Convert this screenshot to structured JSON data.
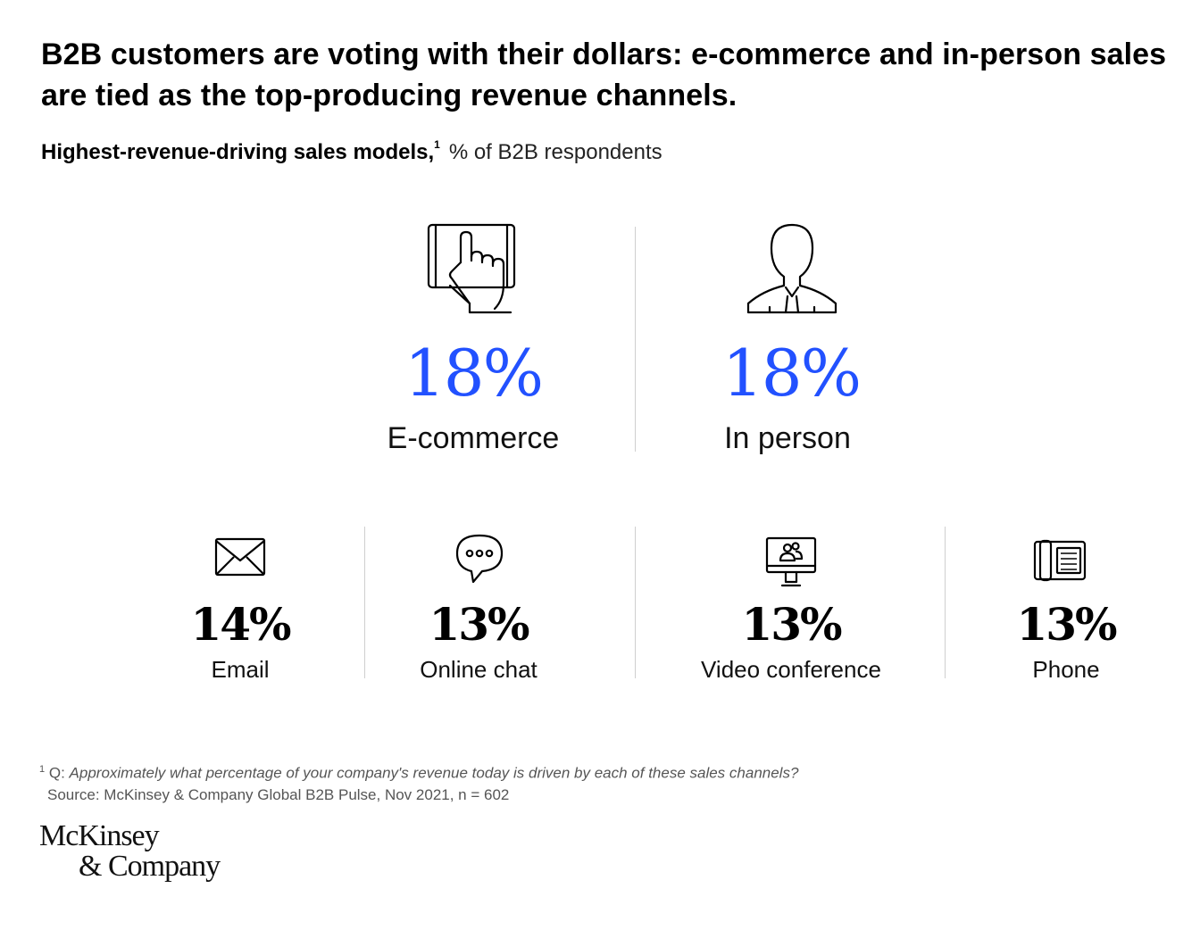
{
  "title": "B2B customers are voting with their dollars: e-commerce and in-person sales are tied as the top-producing revenue channels.",
  "subtitle": {
    "bold": "Highest-revenue-driving sales models,",
    "footnote_mark": "1",
    "unit": "% of B2B respondents"
  },
  "chart_data": {
    "type": "table",
    "title": "Highest-revenue-driving sales models",
    "unit": "% of B2B respondents",
    "categories": [
      "E-commerce",
      "In person",
      "Email",
      "Online chat",
      "Video conference",
      "Phone"
    ],
    "values": [
      18,
      18,
      14,
      13,
      13,
      13
    ],
    "display": [
      "18%",
      "18%",
      "14%",
      "13%",
      "13%",
      "13%"
    ],
    "icons": [
      "tablet-touch-icon",
      "person-icon",
      "envelope-icon",
      "chat-bubble-icon",
      "video-conference-icon",
      "phone-icon"
    ],
    "highlight_color": "#2251ff"
  },
  "footnote": {
    "mark": "1",
    "prefix": "Q: ",
    "question": "Approximately what percentage of your company's revenue today is driven by each of these sales channels?",
    "source": "Source: McKinsey & Company Global B2B Pulse, Nov 2021, n = 602"
  },
  "logo": {
    "line1": "McKinsey",
    "line2": "& Company"
  }
}
